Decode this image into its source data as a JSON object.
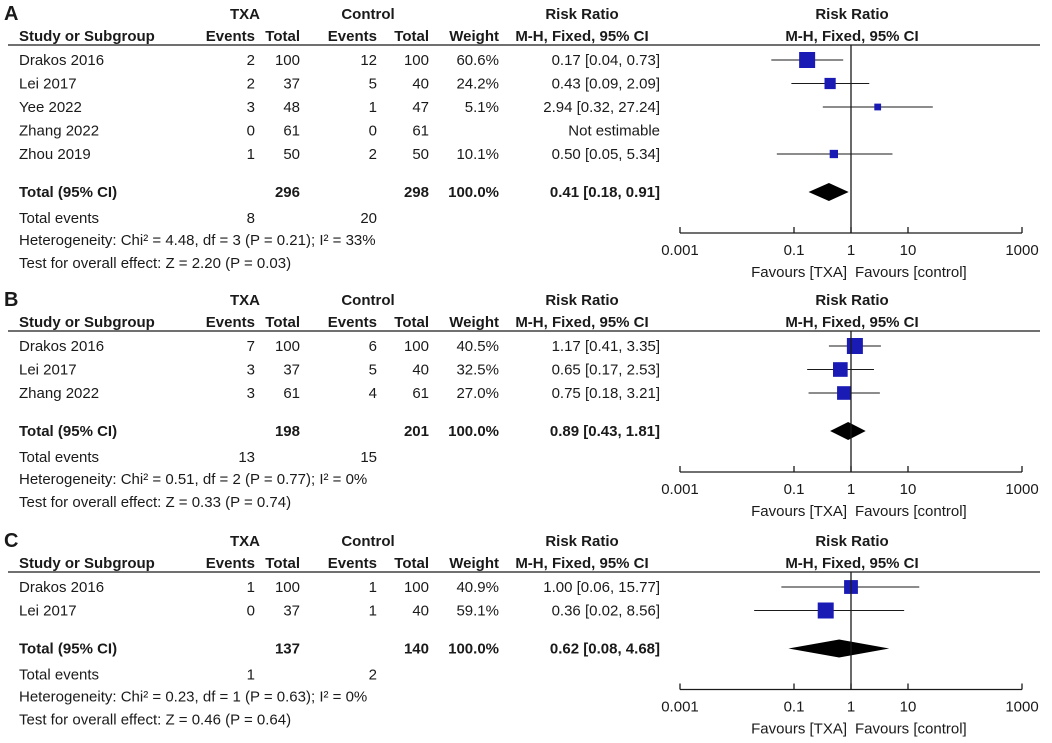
{
  "colors": {
    "marker": "#1a1ab4",
    "ink": "#1a1a1a"
  },
  "chart_data": [
    {
      "type": "forest",
      "panel_label": "A",
      "header": {
        "group1": "TXA",
        "group2": "Control",
        "rr_title": "Risk Ratio",
        "plot_title": "Risk Ratio",
        "study_col": "Study or Subgroup",
        "events": "Events",
        "total": "Total",
        "weight": "Weight",
        "method": "M-H, Fixed, 95% CI"
      },
      "studies": [
        {
          "name": "Drakos 2016",
          "e1": "2",
          "t1": "100",
          "e2": "12",
          "t2": "100",
          "weight": "60.6%",
          "ci_text": "0.17 [0.04, 0.73]",
          "rr": 0.17,
          "lo": 0.04,
          "hi": 0.73,
          "w": 60.6
        },
        {
          "name": "Lei 2017",
          "e1": "2",
          "t1": "37",
          "e2": "5",
          "t2": "40",
          "weight": "24.2%",
          "ci_text": "0.43 [0.09, 2.09]",
          "rr": 0.43,
          "lo": 0.09,
          "hi": 2.09,
          "w": 24.2
        },
        {
          "name": "Yee 2022",
          "e1": "3",
          "t1": "48",
          "e2": "1",
          "t2": "47",
          "weight": "5.1%",
          "ci_text": "2.94 [0.32, 27.24]",
          "rr": 2.94,
          "lo": 0.32,
          "hi": 27.24,
          "w": 5.1
        },
        {
          "name": "Zhang 2022",
          "e1": "0",
          "t1": "61",
          "e2": "0",
          "t2": "61",
          "weight": "",
          "ci_text": "Not estimable",
          "rr": null,
          "lo": null,
          "hi": null,
          "w": 0
        },
        {
          "name": "Zhou 2019",
          "e1": "1",
          "t1": "50",
          "e2": "2",
          "t2": "50",
          "weight": "10.1%",
          "ci_text": "0.50 [0.05, 5.34]",
          "rr": 0.5,
          "lo": 0.05,
          "hi": 5.34,
          "w": 10.1
        }
      ],
      "total": {
        "label": "Total (95% CI)",
        "t1": "296",
        "t2": "298",
        "weight": "100.0%",
        "ci_text": "0.41 [0.18, 0.91]",
        "rr": 0.41,
        "lo": 0.18,
        "hi": 0.91
      },
      "events_row": {
        "label": "Total events",
        "e1": "8",
        "e2": "20"
      },
      "heterogeneity": "Heterogeneity: Chi² = 4.48, df = 3 (P = 0.21); I² = 33%",
      "overall_effect": "Test for overall effect: Z = 2.20 (P = 0.03)",
      "axis": {
        "ticks": [
          "0.001",
          "0.1",
          "1",
          "10",
          "1000"
        ],
        "tick_values": [
          0.001,
          0.1,
          1,
          10,
          1000
        ],
        "scale": "log",
        "xlim": [
          0.001,
          1000
        ]
      },
      "favours_left": "Favours [TXA]",
      "favours_right": "Favours [control]"
    },
    {
      "type": "forest",
      "panel_label": "B",
      "header": {
        "group1": "TXA",
        "group2": "Control",
        "rr_title": "Risk Ratio",
        "plot_title": "Risk Ratio",
        "study_col": "Study or Subgroup",
        "events": "Events",
        "total": "Total",
        "weight": "Weight",
        "method": "M-H, Fixed, 95% CI"
      },
      "studies": [
        {
          "name": "Drakos 2016",
          "e1": "7",
          "t1": "100",
          "e2": "6",
          "t2": "100",
          "weight": "40.5%",
          "ci_text": "1.17 [0.41, 3.35]",
          "rr": 1.17,
          "lo": 0.41,
          "hi": 3.35,
          "w": 40.5
        },
        {
          "name": "Lei 2017",
          "e1": "3",
          "t1": "37",
          "e2": "5",
          "t2": "40",
          "weight": "32.5%",
          "ci_text": "0.65 [0.17, 2.53]",
          "rr": 0.65,
          "lo": 0.17,
          "hi": 2.53,
          "w": 32.5
        },
        {
          "name": "Zhang 2022",
          "e1": "3",
          "t1": "61",
          "e2": "4",
          "t2": "61",
          "weight": "27.0%",
          "ci_text": "0.75 [0.18, 3.21]",
          "rr": 0.75,
          "lo": 0.18,
          "hi": 3.21,
          "w": 27.0
        }
      ],
      "total": {
        "label": "Total (95% CI)",
        "t1": "198",
        "t2": "201",
        "weight": "100.0%",
        "ci_text": "0.89 [0.43, 1.81]",
        "rr": 0.89,
        "lo": 0.43,
        "hi": 1.81
      },
      "events_row": {
        "label": "Total events",
        "e1": "13",
        "e2": "15"
      },
      "heterogeneity": "Heterogeneity: Chi² = 0.51, df = 2 (P = 0.77); I² = 0%",
      "overall_effect": "Test for overall effect: Z = 0.33 (P = 0.74)",
      "axis": {
        "ticks": [
          "0.001",
          "0.1",
          "1",
          "10",
          "1000"
        ],
        "tick_values": [
          0.001,
          0.1,
          1,
          10,
          1000
        ],
        "scale": "log",
        "xlim": [
          0.001,
          1000
        ]
      },
      "favours_left": "Favours [TXA]",
      "favours_right": "Favours [control]"
    },
    {
      "type": "forest",
      "panel_label": "C",
      "header": {
        "group1": "TXA",
        "group2": "Control",
        "rr_title": "Risk Ratio",
        "plot_title": "Risk Ratio",
        "study_col": "Study or Subgroup",
        "events": "Events",
        "total": "Total",
        "weight": "Weight",
        "method": "M-H, Fixed, 95% CI"
      },
      "studies": [
        {
          "name": "Drakos 2016",
          "e1": "1",
          "t1": "100",
          "e2": "1",
          "t2": "100",
          "weight": "40.9%",
          "ci_text": "1.00 [0.06, 15.77]",
          "rr": 1.0,
          "lo": 0.06,
          "hi": 15.77,
          "w": 40.9
        },
        {
          "name": "Lei 2017",
          "e1": "0",
          "t1": "37",
          "e2": "1",
          "t2": "40",
          "weight": "59.1%",
          "ci_text": "0.36 [0.02, 8.56]",
          "rr": 0.36,
          "lo": 0.02,
          "hi": 8.56,
          "w": 59.1
        }
      ],
      "total": {
        "label": "Total (95% CI)",
        "t1": "137",
        "t2": "140",
        "weight": "100.0%",
        "ci_text": "0.62 [0.08, 4.68]",
        "rr": 0.62,
        "lo": 0.08,
        "hi": 4.68
      },
      "events_row": {
        "label": "Total events",
        "e1": "1",
        "e2": "2"
      },
      "heterogeneity": "Heterogeneity: Chi² = 0.23, df = 1 (P = 0.63); I² = 0%",
      "overall_effect": "Test for overall effect: Z = 0.46 (P = 0.64)",
      "axis": {
        "ticks": [
          "0.001",
          "0.1",
          "1",
          "10",
          "1000"
        ],
        "tick_values": [
          0.001,
          0.1,
          1,
          10,
          1000
        ],
        "scale": "log",
        "xlim": [
          0.001,
          1000
        ]
      },
      "favours_left": "Favours [TXA]",
      "favours_right": "Favours [control]"
    }
  ]
}
